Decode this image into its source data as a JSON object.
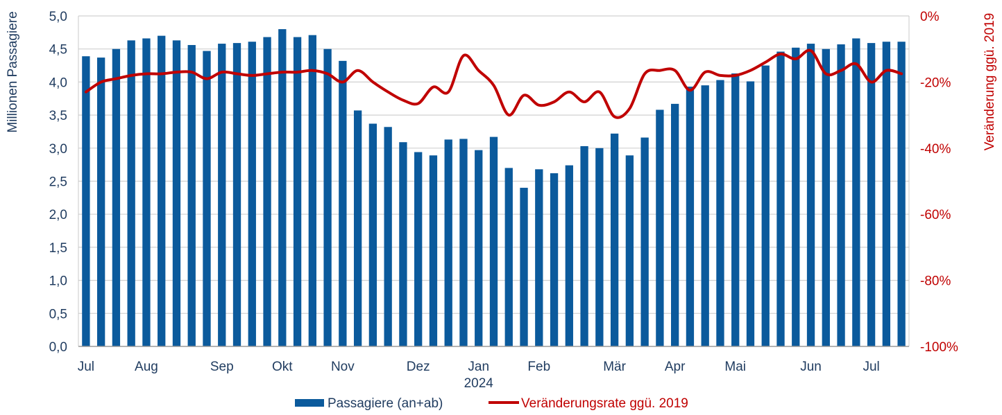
{
  "chart_data": {
    "type": "bar",
    "colors": {
      "bars": "#0b5a9c",
      "line": "#c00000",
      "grid": "#d0d0d0"
    },
    "month_labels": [
      {
        "label": "Jul",
        "week": 1
      },
      {
        "label": "Aug",
        "week": 5
      },
      {
        "label": "Sep",
        "week": 10
      },
      {
        "label": "Okt",
        "week": 14
      },
      {
        "label": "Nov",
        "week": 18
      },
      {
        "label": "Dez",
        "week": 23
      },
      {
        "label": "Jan",
        "week": 27
      },
      {
        "label": "Feb",
        "week": 31
      },
      {
        "label": "Mär",
        "week": 36
      },
      {
        "label": "Apr",
        "week": 40
      },
      {
        "label": "Mai",
        "week": 44
      },
      {
        "label": "Jun",
        "week": 49
      },
      {
        "label": "Jul",
        "week": 53
      }
    ],
    "year_label": {
      "label": "2024",
      "week": 27
    },
    "series": [
      {
        "name": "Passagiere (an+ab)",
        "axis": "left",
        "values": [
          4.39,
          4.37,
          4.5,
          4.63,
          4.66,
          4.7,
          4.63,
          4.56,
          4.47,
          4.58,
          4.59,
          4.61,
          4.68,
          4.8,
          4.68,
          4.71,
          4.5,
          4.32,
          3.57,
          3.37,
          3.32,
          3.09,
          2.94,
          2.89,
          3.13,
          3.14,
          2.97,
          3.17,
          2.7,
          2.4,
          2.68,
          2.62,
          2.74,
          3.03,
          3.0,
          3.22,
          2.89,
          3.16,
          3.58,
          3.67,
          3.93,
          3.95,
          4.03,
          4.13,
          4.01,
          4.25,
          4.46,
          4.52,
          4.58,
          4.5,
          4.57,
          4.66,
          4.59,
          4.61,
          4.61
        ]
      },
      {
        "name": "Veränderungsrate ggü. 2019",
        "axis": "right",
        "values": [
          -23,
          -20,
          -19,
          -18,
          -17.5,
          -17.5,
          -17,
          -17,
          -19,
          -17,
          -17.5,
          -18,
          -17.5,
          -17,
          -17,
          -16.5,
          -17.5,
          -20,
          -16.5,
          -20,
          -23,
          -25.5,
          -26.5,
          -21.5,
          -23,
          -12,
          -16.5,
          -21,
          -30,
          -24,
          -27,
          -26,
          -23,
          -26,
          -23,
          -30.5,
          -28,
          -17.5,
          -16.5,
          -16.5,
          -22.5,
          -17,
          -18,
          -18,
          -16.5,
          -14,
          -11.5,
          -13,
          -10.5,
          -17.5,
          -16.5,
          -14.5,
          -20,
          -16.5,
          -17.5
        ]
      }
    ],
    "y_left": {
      "label": "Millionen Passagiere",
      "min": 0,
      "max": 5,
      "ticks": [
        "0,0",
        "0,5",
        "1,0",
        "1,5",
        "2,0",
        "2,5",
        "3,0",
        "3,5",
        "4,0",
        "4,5",
        "5,0"
      ]
    },
    "y_right": {
      "label": "Veränderung ggü. 2019",
      "min": -100,
      "max": 0,
      "ticks": [
        "-100%",
        "-80%",
        "-60%",
        "-40%",
        "-20%",
        "0%"
      ]
    },
    "grid": true,
    "legend_position": "bottom"
  }
}
